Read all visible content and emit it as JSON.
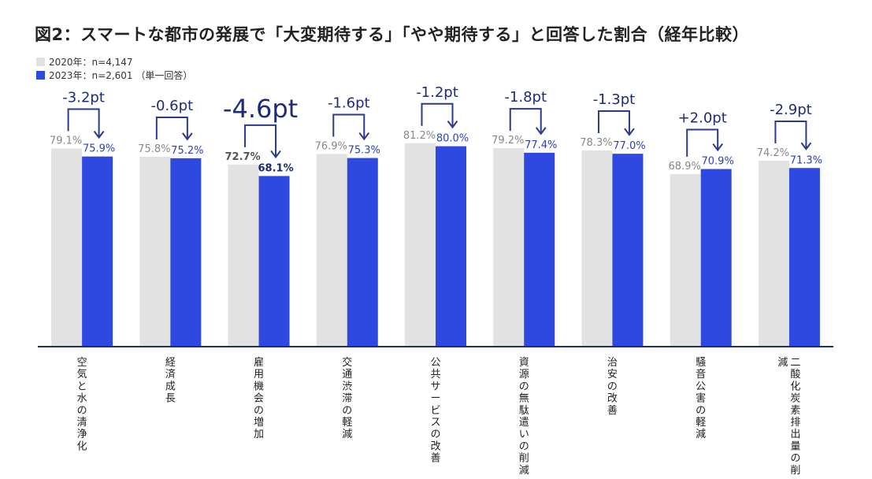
{
  "title": "図2：スマートな都市の発展で「大変期待する」「やや期待する」と回答した割合（経年比較）",
  "legend": {
    "y2020": "2020年：n=4,147",
    "y2023": "2023年：n=2,601 （単一回答）"
  },
  "colors": {
    "y2020": "#e2e2e2",
    "y2023": "#2e48e0",
    "label2020": "#888888",
    "label2023": "#2a3fbf",
    "arrow": "#2a3a8c"
  },
  "chart_data": {
    "type": "bar",
    "categories": [
      "空気と水の清浄化",
      "経済成長",
      "雇用機会の増加",
      "交通渋滞の軽減",
      "公共サービスの改善",
      "資源の無駄遣いの削減",
      "治安の改善",
      "騒音公害の軽減",
      "二酸化炭素排出量の削減"
    ],
    "series": [
      {
        "name": "2020年：n=4,147",
        "values": [
          79.1,
          75.8,
          72.7,
          76.9,
          81.2,
          79.2,
          78.3,
          68.9,
          74.2
        ],
        "labels": [
          "79.1%",
          "75.8%",
          "72.7%",
          "76.9%",
          "81.2%",
          "79.2%",
          "78.3%",
          "68.9%",
          "74.2%"
        ]
      },
      {
        "name": "2023年：n=2,601",
        "values": [
          75.9,
          75.2,
          68.1,
          75.3,
          80.0,
          77.4,
          77.0,
          70.9,
          71.3
        ],
        "labels": [
          "75.9%",
          "75.2%",
          "68.1%",
          "75.3%",
          "80.0%",
          "77.4%",
          "77.0%",
          "70.9%",
          "71.3%"
        ]
      }
    ],
    "diffs": [
      "-3.2pt",
      "-0.6pt",
      "-4.6pt",
      "-1.6pt",
      "-1.2pt",
      "-1.8pt",
      "-1.3pt",
      "+2.0pt",
      "-2.9pt"
    ],
    "highlight_index": 2,
    "ylim": [
      0,
      100
    ],
    "grid": false,
    "legend_position": "top-left"
  }
}
